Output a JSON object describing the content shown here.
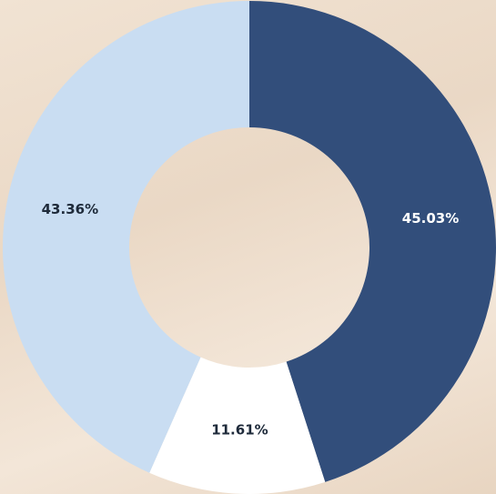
{
  "chart_data": {
    "type": "donut",
    "values": [
      45.03,
      11.61,
      43.36
    ],
    "value_labels": [
      "45.03%",
      "11.61%",
      "43.36%"
    ],
    "colors": [
      "#324e7b",
      "#ffffff",
      "#c9ddf2"
    ]
  }
}
